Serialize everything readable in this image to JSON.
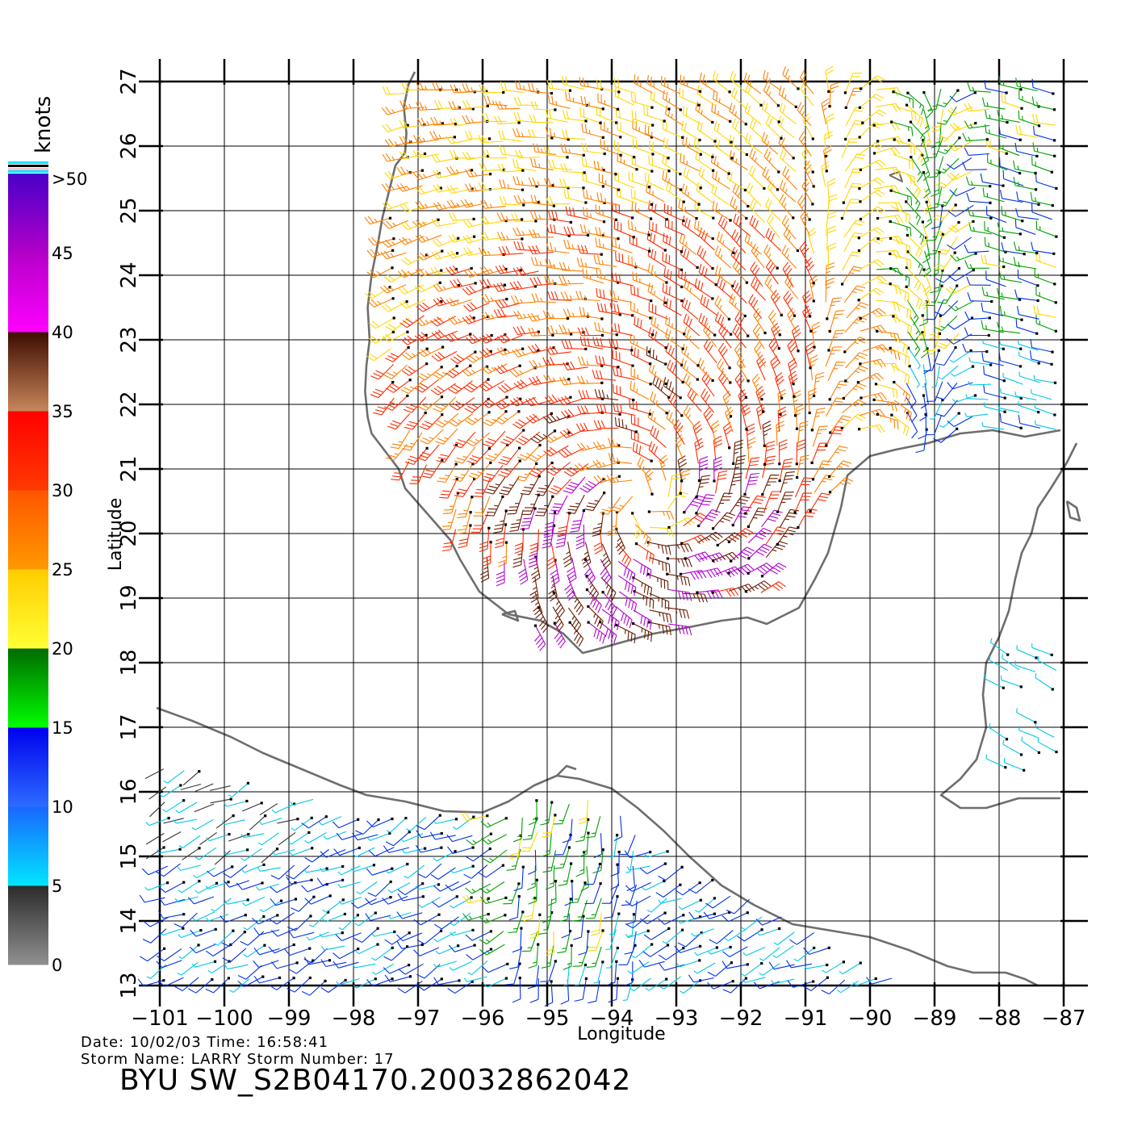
{
  "map": {
    "x_label": "Longitude",
    "y_label": "Latitude",
    "lon_ticks": [
      "−101",
      "−100",
      "−99",
      "−98",
      "−97",
      "−96",
      "−95",
      "−94",
      "−93",
      "−92",
      "−91",
      "−90",
      "−89",
      "−88",
      "−87"
    ],
    "lat_ticks": [
      "13",
      "14",
      "15",
      "16",
      "17",
      "18",
      "19",
      "20",
      "21",
      "22",
      "23",
      "24",
      "25",
      "26",
      "27"
    ],
    "lon_range": [
      -101,
      -87
    ],
    "lat_range": [
      13,
      27
    ],
    "grid": true,
    "storm_center": {
      "lon": -93.5,
      "lat": 20.5
    }
  },
  "colorbar": {
    "unit": "knots",
    "labels": [
      ">50",
      "45",
      "40",
      "35",
      "30",
      "25",
      "20",
      "15",
      "10",
      "5",
      "0"
    ],
    "bands": [
      {
        "from": 0,
        "to": 5,
        "top": "#2b2b2b",
        "bottom": "#909090"
      },
      {
        "from": 5,
        "to": 10,
        "top": "#1a66ff",
        "bottom": "#00e6ff"
      },
      {
        "from": 10,
        "to": 15,
        "top": "#0000ee",
        "bottom": "#2c6cff"
      },
      {
        "from": 15,
        "to": 20,
        "top": "#006a00",
        "bottom": "#00ff00"
      },
      {
        "from": 20,
        "to": 25,
        "top": "#ffcc00",
        "bottom": "#ffff33"
      },
      {
        "from": 25,
        "to": 30,
        "top": "#ff5500",
        "bottom": "#ff9900"
      },
      {
        "from": 30,
        "to": 35,
        "top": "#ff0000",
        "bottom": "#ff3a00"
      },
      {
        "from": 35,
        "to": 40,
        "top": "#3c0c00",
        "bottom": "#c8865a"
      },
      {
        "from": 40,
        "to": 45,
        "top": "#b400c8",
        "bottom": "#ff00ff"
      },
      {
        "from": 45,
        "to": 50,
        "top": "#4a00c8",
        "bottom": "#b000c8"
      }
    ]
  },
  "info": {
    "date_line": "Date: 10/02/03   Time: 16:58:41",
    "storm_line": "Storm  Name: LARRY    Storm  Number: 17",
    "product": "BYU  SW_S2B04170.20032862042"
  }
}
